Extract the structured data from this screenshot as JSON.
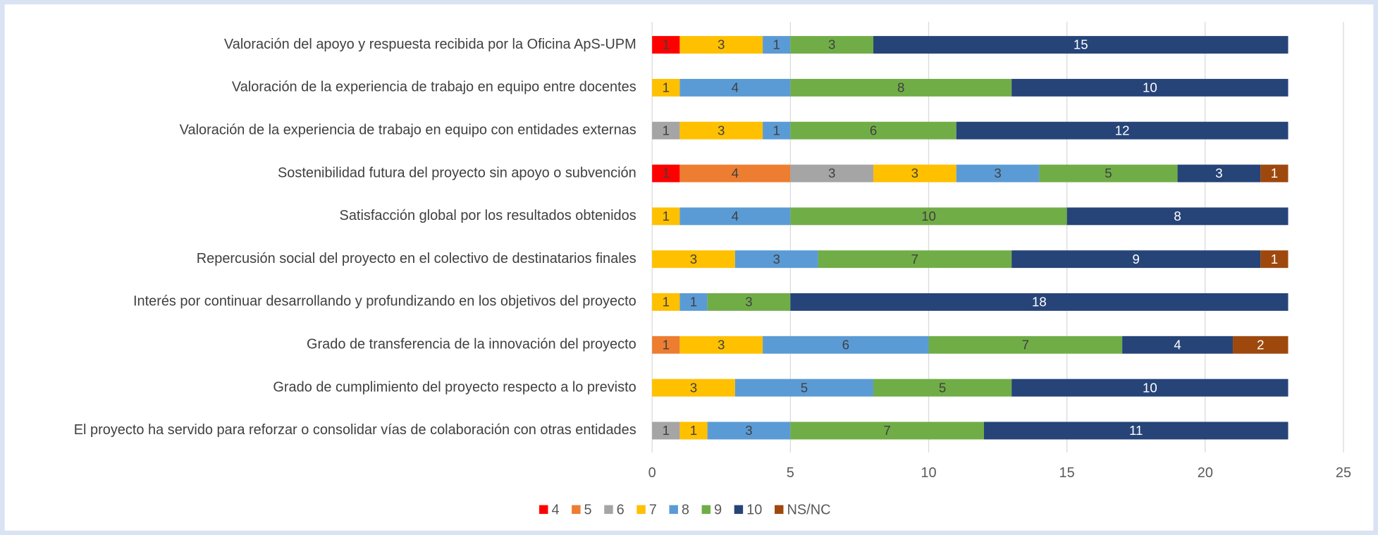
{
  "chart_data": {
    "type": "stacked-bar-horizontal",
    "categories": [
      "Valoración del apoyo y respuesta recibida por la Oficina ApS-UPM",
      "Valoración de la experiencia de trabajo en equipo entre docentes",
      "Valoración de la experiencia de trabajo en equipo con entidades externas",
      "Sostenibilidad futura del proyecto sin apoyo o subvención",
      "Satisfacción global por los resultados obtenidos",
      "Repercusión social del proyecto en el colectivo de destinatarios finales",
      "Interés por continuar desarrollando y profundizando en los objetivos del proyecto",
      "Grado de transferencia de la innovación del proyecto ",
      "Grado de cumplimiento del proyecto respecto a lo previsto",
      "El proyecto ha servido para reforzar o consolidar vías de colaboración con otras entidades"
    ],
    "series": [
      {
        "name": "4",
        "color": "#ff0000",
        "values": [
          1,
          null,
          null,
          1,
          null,
          null,
          null,
          null,
          null,
          null
        ]
      },
      {
        "name": "5",
        "color": "#ed7d31",
        "values": [
          null,
          null,
          null,
          4,
          null,
          null,
          null,
          1,
          null,
          null
        ]
      },
      {
        "name": "6",
        "color": "#a5a5a5",
        "values": [
          null,
          null,
          1,
          3,
          null,
          null,
          null,
          null,
          null,
          1
        ]
      },
      {
        "name": "7",
        "color": "#ffc000",
        "values": [
          3,
          1,
          3,
          3,
          1,
          3,
          1,
          3,
          3,
          1
        ]
      },
      {
        "name": "8",
        "color": "#5b9bd5",
        "values": [
          1,
          4,
          1,
          3,
          4,
          3,
          1,
          6,
          5,
          3
        ]
      },
      {
        "name": "9",
        "color": "#70ad47",
        "values": [
          3,
          8,
          6,
          5,
          10,
          7,
          3,
          7,
          5,
          7
        ]
      },
      {
        "name": "10",
        "color": "#264478",
        "values": [
          15,
          10,
          12,
          3,
          8,
          9,
          18,
          4,
          10,
          11
        ]
      },
      {
        "name": "NS/NC",
        "color": "#9e480e",
        "values": [
          null,
          null,
          null,
          1,
          null,
          1,
          null,
          2,
          null,
          null
        ]
      }
    ],
    "xlim": [
      0,
      25
    ],
    "xticks": [
      0,
      5,
      10,
      15,
      20,
      25
    ],
    "grid": true,
    "legend": "bottom"
  }
}
